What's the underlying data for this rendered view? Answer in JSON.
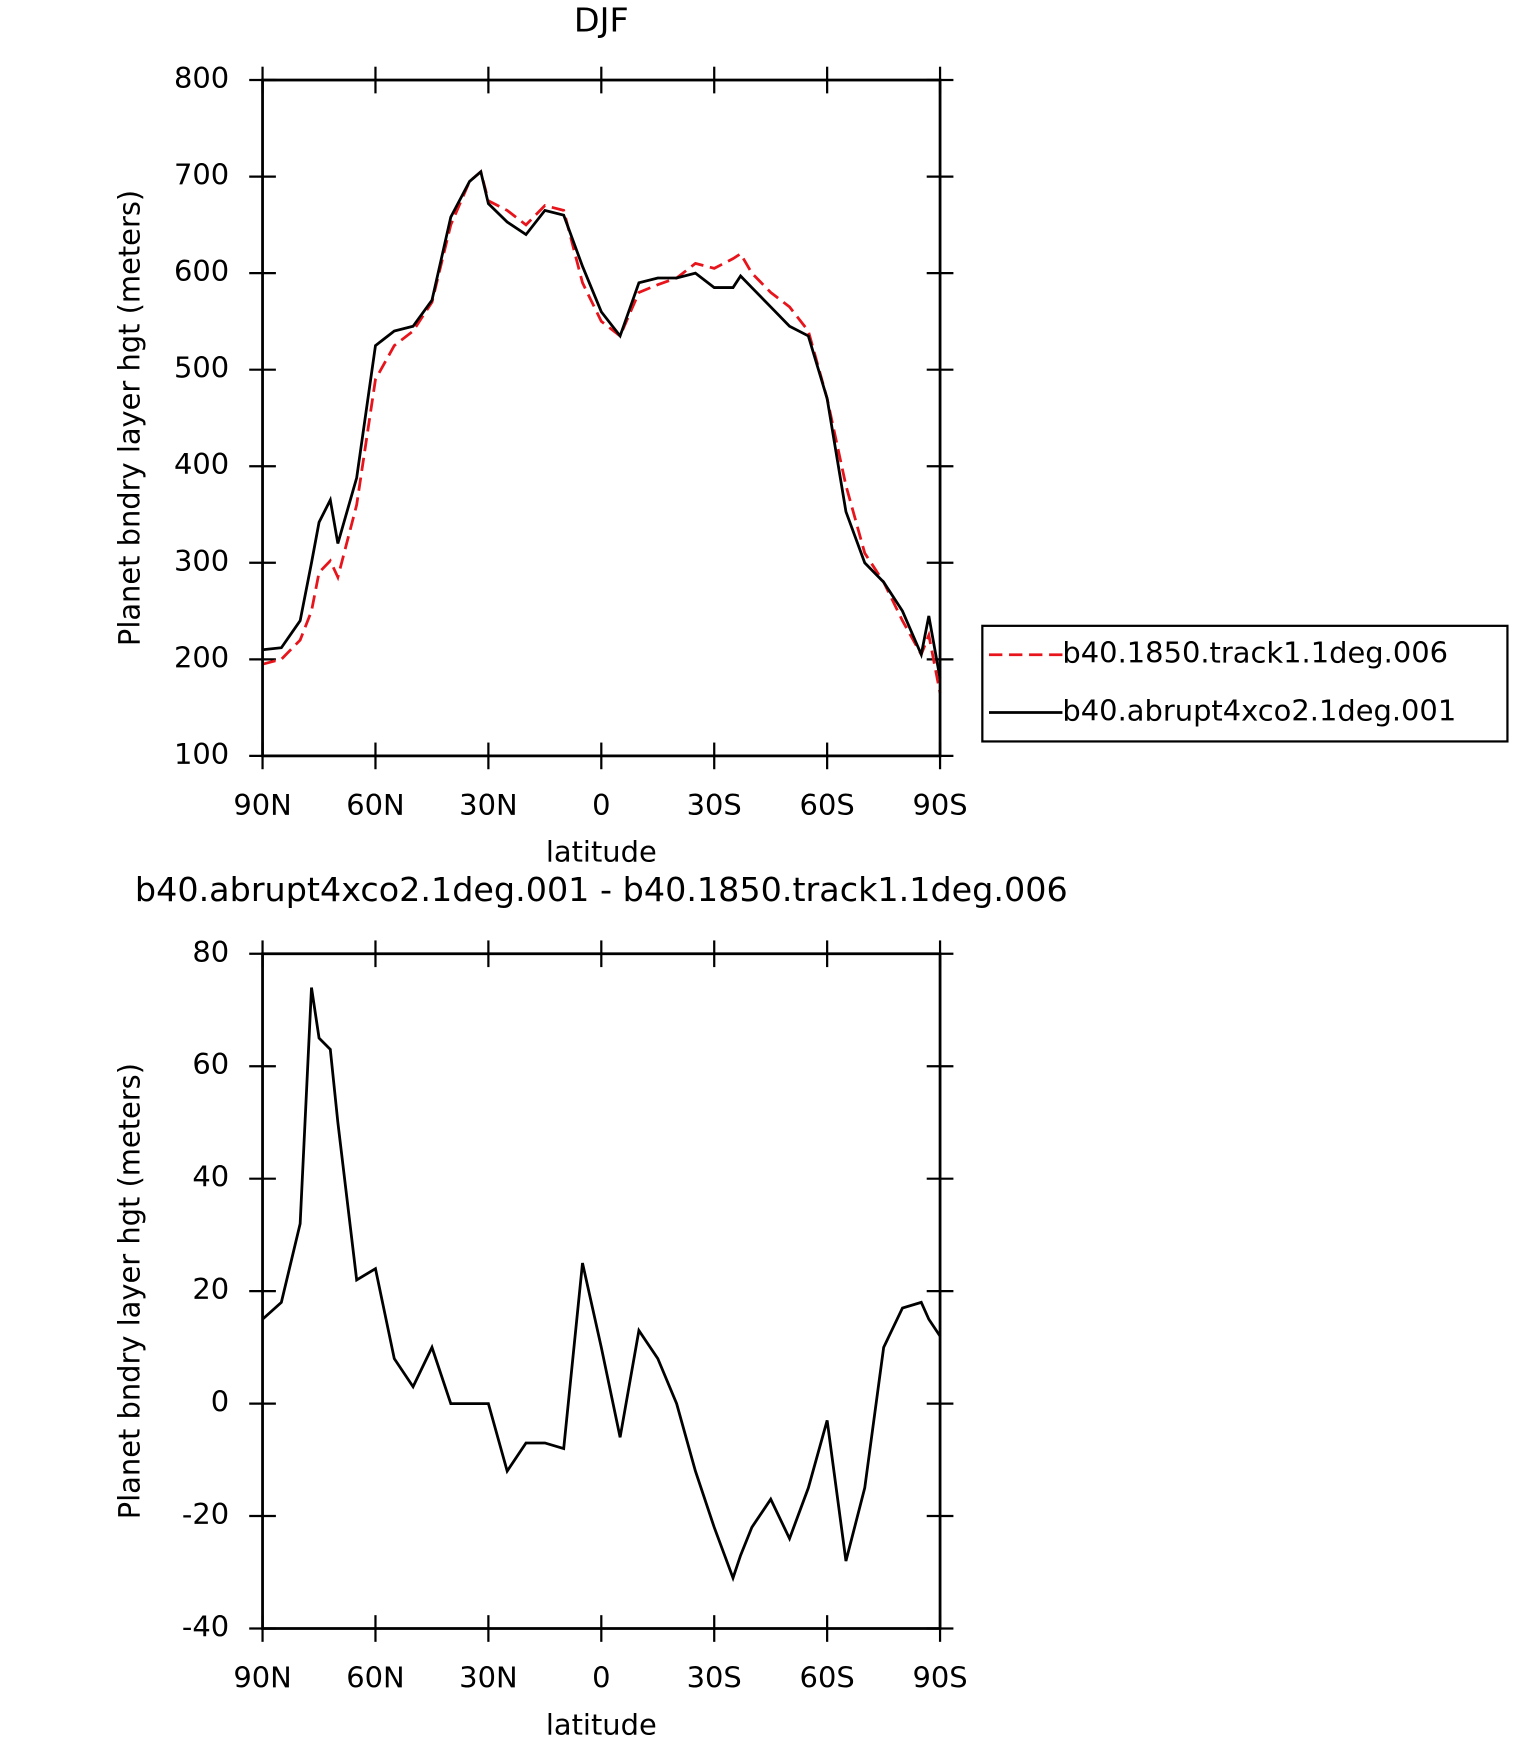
{
  "chart_data": [
    {
      "type": "line",
      "title": "DJF",
      "xlabel": "latitude",
      "ylabel": "Planet bndry layer hgt (meters)",
      "x": [
        90,
        85,
        80,
        77,
        75,
        72,
        70,
        65,
        60,
        55,
        50,
        45,
        40,
        35,
        32,
        30,
        25,
        20,
        15,
        10,
        5,
        0,
        -5,
        -10,
        -15,
        -20,
        -25,
        -30,
        -35,
        -37,
        -40,
        -45,
        -50,
        -55,
        -60,
        -65,
        -70,
        -75,
        -80,
        -85,
        -87,
        -90
      ],
      "series": [
        {
          "name": "b40.1850.track1.1deg.006",
          "color": "#e8141b",
          "dashed": true,
          "values": [
            195,
            200,
            220,
            250,
            290,
            302,
            285,
            360,
            490,
            525,
            540,
            570,
            650,
            695,
            705,
            675,
            665,
            650,
            670,
            665,
            590,
            550,
            535,
            580,
            588,
            595,
            610,
            605,
            615,
            620,
            600,
            580,
            565,
            540,
            470,
            380,
            310,
            280,
            240,
            205,
            225,
            165
          ]
        },
        {
          "name": "b40.abrupt4xco2.1deg.001",
          "color": "#000000",
          "dashed": false,
          "values": [
            210,
            212,
            240,
            300,
            342,
            365,
            320,
            388,
            525,
            540,
            545,
            572,
            658,
            695,
            705,
            672,
            653,
            640,
            665,
            660,
            607,
            560,
            535,
            590,
            595,
            595,
            600,
            585,
            585,
            597,
            585,
            565,
            545,
            535,
            470,
            353,
            300,
            280,
            250,
            205,
            245,
            180
          ]
        }
      ],
      "xlim": [
        90,
        -90
      ],
      "xticks": [
        {
          "value": 90,
          "label": "90N"
        },
        {
          "value": 60,
          "label": "60N"
        },
        {
          "value": 30,
          "label": "30N"
        },
        0,
        {
          "value": -30,
          "label": "30S"
        },
        {
          "value": -60,
          "label": "60S"
        },
        {
          "value": -90,
          "label": "90S"
        }
      ],
      "ylim": [
        100,
        800
      ],
      "yticks": [
        100,
        200,
        300,
        400,
        500,
        600,
        700,
        800
      ],
      "legend": "right"
    },
    {
      "type": "line",
      "title": "b40.abrupt4xco2.1deg.001 - b40.1850.track1.1deg.006",
      "xlabel": "latitude",
      "ylabel": "Planet bndry layer hgt (meters)",
      "x": [
        90,
        85,
        80,
        77,
        75,
        72,
        70,
        65,
        60,
        55,
        50,
        45,
        40,
        35,
        32,
        30,
        25,
        20,
        15,
        10,
        5,
        0,
        -5,
        -10,
        -15,
        -20,
        -25,
        -30,
        -35,
        -37,
        -40,
        -45,
        -50,
        -55,
        -60,
        -65,
        -70,
        -75,
        -80,
        -85,
        -87,
        -90
      ],
      "series": [
        {
          "color": "#000000",
          "dashed": false,
          "values": [
            15,
            18,
            32,
            74,
            65,
            63,
            50,
            22,
            24,
            8,
            3,
            10,
            0,
            0,
            0,
            0,
            -12,
            -7,
            -7,
            -8,
            25,
            10,
            -6,
            13,
            8,
            0,
            -12,
            -22,
            -31,
            -27,
            -22,
            -17,
            -24,
            -15,
            -3,
            -28,
            -15,
            10,
            17,
            18,
            15,
            12
          ]
        }
      ],
      "xlim": [
        90,
        -90
      ],
      "xticks": [
        {
          "value": 90,
          "label": "90N"
        },
        {
          "value": 60,
          "label": "60N"
        },
        {
          "value": 30,
          "label": "30N"
        },
        0,
        {
          "value": -30,
          "label": "30S"
        },
        {
          "value": -60,
          "label": "60S"
        },
        {
          "value": -90,
          "label": "90S"
        }
      ],
      "ylim": [
        -40,
        80
      ],
      "yticks": [
        -40,
        -20,
        0,
        20,
        40,
        60,
        80
      ]
    }
  ]
}
